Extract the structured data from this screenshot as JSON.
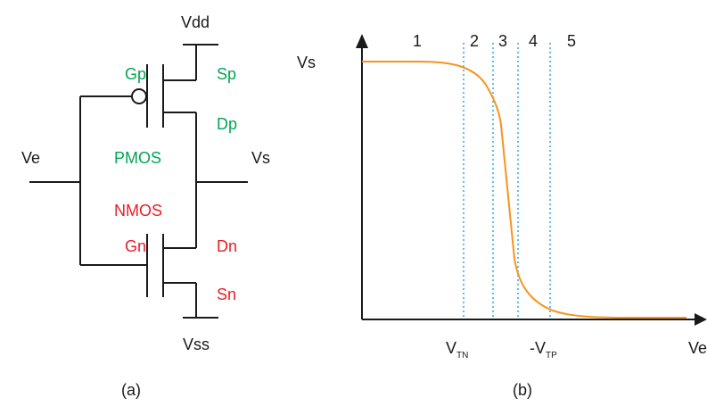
{
  "circuit": {
    "vdd": "Vdd",
    "vss": "Vss",
    "ve": "Ve",
    "vs": "Vs",
    "pmos": {
      "label": "PMOS",
      "gate": "Gp",
      "source": "Sp",
      "drain": "Dp"
    },
    "nmos": {
      "label": "NMOS",
      "gate": "Gn",
      "source": "Sn",
      "drain": "Dn"
    },
    "caption": "(a)"
  },
  "transfer": {
    "y_label": "Vs",
    "x_label": "Ve",
    "vtn_main": "V",
    "vtn_sub": "TN",
    "vtp_main": "-V",
    "vtp_sub": "TP",
    "regions": [
      "1",
      "2",
      "3",
      "4",
      "5"
    ],
    "caption": "(b)"
  },
  "colors": {
    "pmos": "#00a651",
    "nmos": "#ed1c24",
    "curve": "#f7941d",
    "boundary": "#29abe2",
    "wire": "#1a1a1a"
  }
}
